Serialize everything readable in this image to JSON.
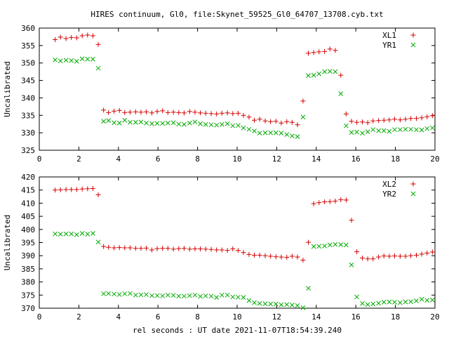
{
  "title": "HIRES continuum, Gl0, file:Skynet_59525_Gl0_64707_13708.cyb.txt",
  "xlabel": "rel seconds : UT date 2021-11-07T18:54:39.240",
  "colors": {
    "red": "#d40000",
    "green": "#00aa00"
  },
  "chart_data": [
    {
      "type": "scatter",
      "ylabel": "Uncalibrated",
      "xlim": [
        0,
        20
      ],
      "ylim": [
        325,
        360
      ],
      "xticks": [
        0,
        2,
        4,
        6,
        8,
        10,
        12,
        14,
        16,
        18,
        20
      ],
      "yticks": [
        325,
        330,
        335,
        340,
        345,
        350,
        355,
        360
      ],
      "legend_position": "top-right",
      "x": [
        0.8,
        1.07,
        1.35,
        1.62,
        1.89,
        2.17,
        2.44,
        2.71,
        2.98,
        3.25,
        3.5,
        3.78,
        4.05,
        4.32,
        4.59,
        4.87,
        5.14,
        5.41,
        5.69,
        5.96,
        6.23,
        6.5,
        6.78,
        7.05,
        7.32,
        7.6,
        7.87,
        8.14,
        8.41,
        8.69,
        8.96,
        9.23,
        9.51,
        9.78,
        10.05,
        10.32,
        10.6,
        10.87,
        11.14,
        11.42,
        11.69,
        11.96,
        12.23,
        12.51,
        12.78,
        13.05,
        13.33,
        13.6,
        13.87,
        14.14,
        14.42,
        14.69,
        14.96,
        15.24,
        15.51,
        15.78,
        16.05,
        16.33,
        16.6,
        16.87,
        17.15,
        17.42,
        17.69,
        17.96,
        18.24,
        18.51,
        18.78,
        19.06,
        19.33,
        19.6,
        19.87
      ],
      "series": [
        {
          "name": "XL1",
          "color": "red",
          "marker": "plus",
          "values": [
            356.7,
            357.4,
            357.0,
            357.3,
            357.2,
            357.8,
            358.0,
            357.8,
            355.3,
            336.5,
            335.8,
            336.2,
            336.4,
            335.8,
            335.9,
            336.0,
            335.9,
            336.0,
            335.7,
            336.1,
            336.3,
            335.8,
            335.9,
            335.8,
            335.7,
            336.1,
            335.9,
            335.7,
            335.6,
            335.5,
            335.4,
            335.6,
            335.7,
            335.5,
            335.6,
            335.0,
            334.5,
            333.6,
            333.9,
            333.4,
            333.2,
            333.3,
            332.8,
            333.2,
            333.0,
            332.3,
            339.1,
            352.8,
            353.0,
            353.2,
            353.3,
            354.0,
            353.6,
            346.5,
            335.4,
            333.3,
            333.0,
            333.1,
            332.9,
            333.4,
            333.5,
            333.6,
            333.7,
            333.9,
            333.7,
            333.9,
            334.1,
            334.1,
            334.3,
            334.6,
            334.9
          ]
        },
        {
          "name": "YR1",
          "color": "green",
          "marker": "x",
          "values": [
            350.9,
            350.6,
            350.8,
            350.7,
            350.5,
            351.2,
            351.1,
            351.1,
            348.5,
            333.3,
            333.5,
            332.9,
            332.8,
            333.6,
            333.0,
            333.0,
            333.1,
            332.8,
            332.6,
            332.7,
            332.7,
            332.8,
            332.9,
            332.5,
            332.4,
            332.8,
            333.1,
            332.6,
            332.4,
            332.3,
            332.2,
            332.4,
            332.6,
            332.0,
            332.1,
            331.4,
            331.0,
            330.5,
            329.9,
            330.0,
            330.0,
            330.0,
            329.9,
            329.5,
            329.1,
            328.9,
            334.5,
            346.4,
            346.5,
            346.9,
            347.5,
            347.6,
            347.5,
            341.2,
            332.0,
            330.1,
            330.2,
            329.9,
            330.3,
            330.9,
            330.6,
            330.6,
            330.4,
            330.9,
            330.9,
            331.0,
            331.0,
            330.9,
            330.8,
            331.2,
            331.4
          ]
        }
      ]
    },
    {
      "type": "scatter",
      "ylabel": "Uncalibrated",
      "xlim": [
        0,
        20
      ],
      "ylim": [
        370,
        420
      ],
      "xticks": [
        0,
        2,
        4,
        6,
        8,
        10,
        12,
        14,
        16,
        18,
        20
      ],
      "yticks": [
        370,
        375,
        380,
        385,
        390,
        395,
        400,
        405,
        410,
        415,
        420
      ],
      "legend_position": "top-right",
      "x": [
        0.8,
        1.07,
        1.35,
        1.62,
        1.89,
        2.17,
        2.44,
        2.71,
        2.98,
        3.25,
        3.5,
        3.78,
        4.05,
        4.32,
        4.59,
        4.87,
        5.14,
        5.41,
        5.69,
        5.96,
        6.23,
        6.5,
        6.78,
        7.05,
        7.32,
        7.6,
        7.87,
        8.14,
        8.41,
        8.69,
        8.96,
        9.23,
        9.51,
        9.78,
        10.05,
        10.32,
        10.6,
        10.87,
        11.14,
        11.42,
        11.69,
        11.96,
        12.23,
        12.51,
        12.78,
        13.05,
        13.33,
        13.6,
        13.87,
        14.14,
        14.42,
        14.69,
        14.96,
        15.24,
        15.51,
        15.78,
        16.05,
        16.33,
        16.6,
        16.87,
        17.15,
        17.42,
        17.69,
        17.96,
        18.24,
        18.51,
        18.78,
        19.06,
        19.33,
        19.6,
        19.87
      ],
      "series": [
        {
          "name": "XL2",
          "color": "red",
          "marker": "plus",
          "values": [
            415.0,
            415.1,
            415.2,
            415.2,
            415.2,
            415.4,
            415.5,
            415.6,
            413.2,
            393.5,
            393.2,
            393.0,
            393.1,
            393.0,
            393.0,
            392.8,
            392.8,
            392.9,
            392.2,
            392.7,
            392.8,
            392.8,
            392.5,
            392.7,
            392.8,
            392.5,
            392.6,
            392.6,
            392.5,
            392.4,
            392.2,
            392.2,
            392.0,
            392.6,
            392.0,
            391.2,
            390.5,
            390.2,
            390.2,
            390.0,
            389.8,
            389.6,
            389.5,
            389.4,
            389.8,
            389.5,
            388.3,
            395.1,
            409.8,
            410.2,
            410.5,
            410.6,
            410.8,
            411.3,
            411.2,
            403.5,
            391.5,
            389.1,
            388.8,
            388.8,
            389.5,
            389.9,
            389.8,
            389.9,
            389.8,
            389.8,
            390.0,
            390.2,
            390.6,
            391.0,
            391.4
          ]
        },
        {
          "name": "YR2",
          "color": "green",
          "marker": "x",
          "values": [
            398.3,
            398.2,
            398.3,
            398.3,
            398.0,
            398.5,
            398.2,
            398.5,
            395.2,
            375.5,
            375.6,
            375.4,
            375.2,
            375.5,
            375.6,
            375.0,
            375.1,
            375.2,
            374.8,
            374.8,
            374.7,
            375.0,
            374.9,
            374.6,
            374.6,
            374.8,
            375.0,
            374.5,
            374.7,
            374.6,
            374.1,
            375.0,
            375.0,
            374.3,
            374.2,
            374.1,
            372.9,
            372.1,
            371.8,
            371.7,
            371.6,
            371.6,
            371.3,
            371.4,
            371.2,
            371.0,
            370.2,
            377.6,
            393.5,
            393.6,
            393.7,
            394.1,
            394.3,
            394.2,
            394.1,
            386.5,
            374.3,
            371.8,
            371.4,
            371.6,
            371.9,
            372.3,
            372.4,
            372.3,
            372.1,
            372.4,
            372.5,
            372.8,
            373.4,
            373.0,
            373.1
          ]
        }
      ]
    }
  ]
}
